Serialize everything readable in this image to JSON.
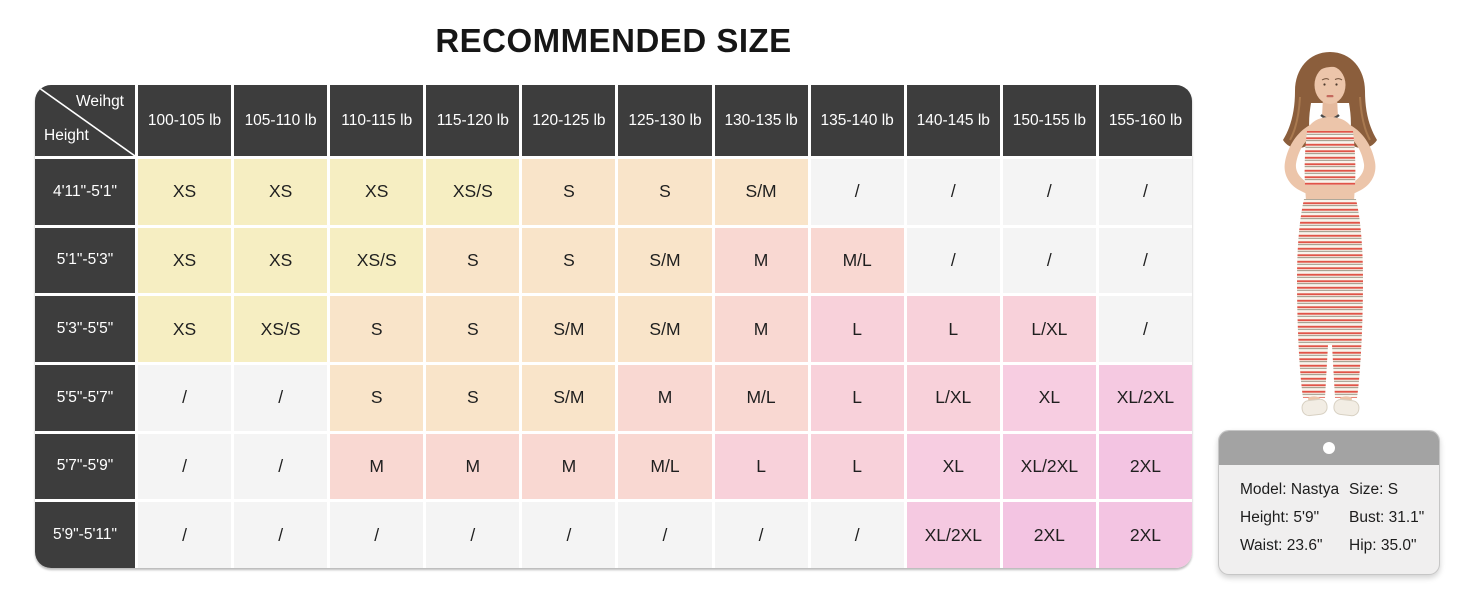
{
  "chart_data": {
    "type": "table",
    "title": "RECOMMENDED SIZE",
    "corner": {
      "top_right": "Weihgt",
      "bottom_left": "Height"
    },
    "columns": [
      "100-105 lb",
      "105-110 lb",
      "110-115 lb",
      "115-120 lb",
      "120-125 lb",
      "125-130 lb",
      "130-135 lb",
      "135-140 lb",
      "140-145 lb",
      "150-155 lb",
      "155-160 lb"
    ],
    "rows": [
      {
        "height": "4'11\"-5'1\"",
        "sizes": [
          "XS",
          "XS",
          "XS",
          "XS/S",
          "S",
          "S",
          "S/M",
          "/",
          "/",
          "/",
          "/"
        ]
      },
      {
        "height": "5'1\"-5'3\"",
        "sizes": [
          "XS",
          "XS",
          "XS/S",
          "S",
          "S",
          "S/M",
          "M",
          "M/L",
          "/",
          "/",
          "/"
        ]
      },
      {
        "height": "5'3\"-5'5\"",
        "sizes": [
          "XS",
          "XS/S",
          "S",
          "S",
          "S/M",
          "S/M",
          "M",
          "L",
          "L",
          "L/XL",
          "/"
        ]
      },
      {
        "height": "5'5\"-5'7\"",
        "sizes": [
          "/",
          "/",
          "S",
          "S",
          "S/M",
          "M",
          "M/L",
          "L",
          "L/XL",
          "XL",
          "XL/2XL"
        ]
      },
      {
        "height": "5'7\"-5'9\"",
        "sizes": [
          "/",
          "/",
          "M",
          "M",
          "M",
          "M/L",
          "L",
          "L",
          "XL",
          "XL/2XL",
          "2XL"
        ]
      },
      {
        "height": "5'9\"-5'11\"",
        "sizes": [
          "/",
          "/",
          "/",
          "/",
          "/",
          "/",
          "/",
          "/",
          "XL/2XL",
          "2XL",
          "2XL"
        ]
      }
    ],
    "empty_value": "/",
    "size_colors": {
      "XS": "#f6eec2",
      "XS/S": "#f6eec2",
      "S": "#f9e4c9",
      "S/M": "#f9e4c9",
      "M": "#f9d8d2",
      "M/L": "#f9d8d2",
      "L": "#f8d1da",
      "L/XL": "#f8d1da",
      "XL": "#f7cde1",
      "XL/2XL": "#f5c9e1",
      "2XL": "#f3c4e2",
      "/": "#f4f4f4"
    }
  },
  "model_card": {
    "lines": [
      {
        "left": "Model: Nastya",
        "right": "Size: S"
      },
      {
        "left": "Height: 5'9\"",
        "right": "Bust: 31.1\""
      },
      {
        "left": "Waist: 23.6\"",
        "right": "Hip: 35.0\""
      }
    ]
  },
  "theme": {
    "title_text": "#161616",
    "header_bg": "#3d3d3d",
    "grid_gap": "#ffffff",
    "cell_text": "#1f1f1f",
    "card_strip": "#a3a3a3",
    "card_body": "#f0efef",
    "card_border": "#c6c6c6",
    "card_text": "#1d1d1d",
    "skin": "#ecc5aa",
    "skin_shade": "#e5ba9e",
    "hair": "#8b5e3c",
    "hair_light": "#a9794f",
    "stripe_base": "#f9f4ec",
    "stripe_red": "#e05448",
    "stripe_dark": "#7d7663",
    "sandal": "#f2ede4",
    "sandal_edge": "#d8d1c3",
    "necklace": "#4a4a4a",
    "lips": "#c4695d"
  }
}
